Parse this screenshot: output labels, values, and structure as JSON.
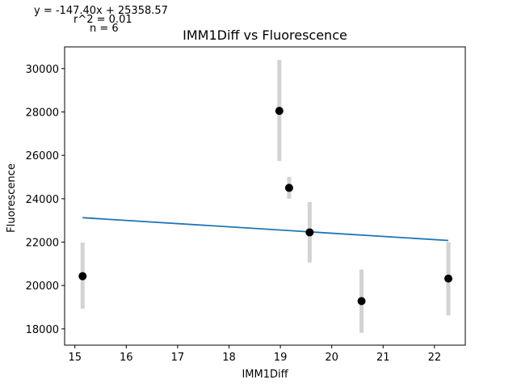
{
  "chart_data": {
    "type": "scatter",
    "title": "IMM1Diff vs Fluorescence",
    "xlabel": "IMM1Diff",
    "ylabel": "Fluorescence",
    "xlim": [
      14.8,
      22.6
    ],
    "ylim": [
      17250,
      31000
    ],
    "xticks": [
      15,
      16,
      17,
      18,
      19,
      20,
      21,
      22
    ],
    "yticks": [
      18000,
      20000,
      22000,
      24000,
      26000,
      28000,
      30000
    ],
    "grid": false,
    "points": [
      {
        "x": 15.15,
        "y": 20430,
        "err_low": 18930,
        "err_high": 21980
      },
      {
        "x": 18.98,
        "y": 28050,
        "err_low": 25740,
        "err_high": 30400
      },
      {
        "x": 19.17,
        "y": 24500,
        "err_low": 24000,
        "err_high": 25010
      },
      {
        "x": 19.57,
        "y": 22450,
        "err_low": 21060,
        "err_high": 23850
      },
      {
        "x": 20.58,
        "y": 19280,
        "err_low": 17820,
        "err_high": 20740
      },
      {
        "x": 22.27,
        "y": 20320,
        "err_low": 18620,
        "err_high": 22000
      }
    ],
    "fit": {
      "slope": -147.4,
      "intercept": 25358.57
    },
    "annotations": [
      "y = -147.40x + 25358.57",
      "r^2 = 0.01",
      "n = 6"
    ],
    "colors": {
      "points": "#000000",
      "errorbars": "#d3d3d3",
      "fit_line": "#1f77b4",
      "axes": "#000000"
    }
  }
}
